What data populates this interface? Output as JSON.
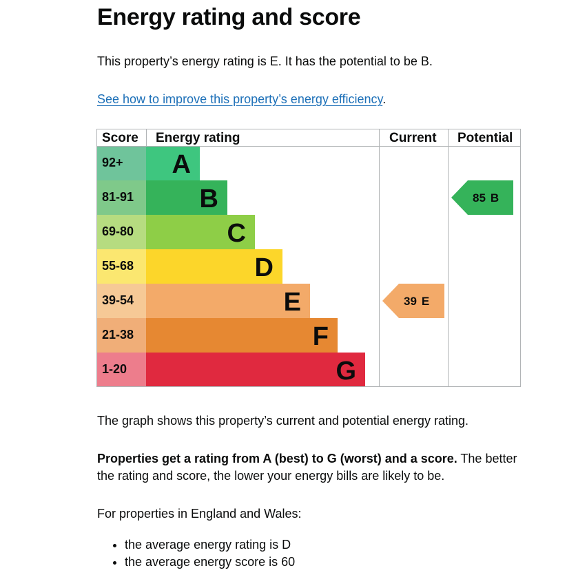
{
  "heading": "Energy rating and score",
  "intro": "This property’s energy rating is E. It has the potential to be B.",
  "improve_link": "See how to improve this property’s energy efficiency",
  "improve_link_suffix": ".",
  "chart_data": {
    "type": "bar",
    "headers": {
      "score": "Score",
      "rating": "Energy rating",
      "current": "Current",
      "potential": "Potential"
    },
    "bands": [
      {
        "range": "92+",
        "letter": "A",
        "score_color": "#6fc49b",
        "bar_color": "#3ec67f"
      },
      {
        "range": "81-91",
        "letter": "B",
        "score_color": "#7fc98a",
        "bar_color": "#35b35a"
      },
      {
        "range": "69-80",
        "letter": "C",
        "score_color": "#b6dc80",
        "bar_color": "#8ece47"
      },
      {
        "range": "55-68",
        "letter": "D",
        "score_color": "#fbe770",
        "bar_color": "#fcd62a"
      },
      {
        "range": "39-54",
        "letter": "E",
        "score_color": "#f6c996",
        "bar_color": "#f3aa69"
      },
      {
        "range": "21-38",
        "letter": "F",
        "score_color": "#f0ae78",
        "bar_color": "#e68832"
      },
      {
        "range": "1-20",
        "letter": "G",
        "score_color": "#ed7d8c",
        "bar_color": "#e0293f"
      }
    ],
    "current": {
      "score": 39,
      "letter": "E",
      "color": "#f3aa69"
    },
    "potential": {
      "score": 85,
      "letter": "B",
      "color": "#35b35a"
    }
  },
  "graph_caption": "The graph shows this property’s current and potential energy rating.",
  "rating_bold": "Properties get a rating from A (best) to G (worst) and a score.",
  "rating_rest_line1": " The better",
  "rating_rest_line2": "the rating and score, the lower your energy bills are likely to be.",
  "england_wales": "For properties in England and Wales:",
  "bullets": [
    "the average energy rating is D",
    "the average energy score is 60"
  ]
}
